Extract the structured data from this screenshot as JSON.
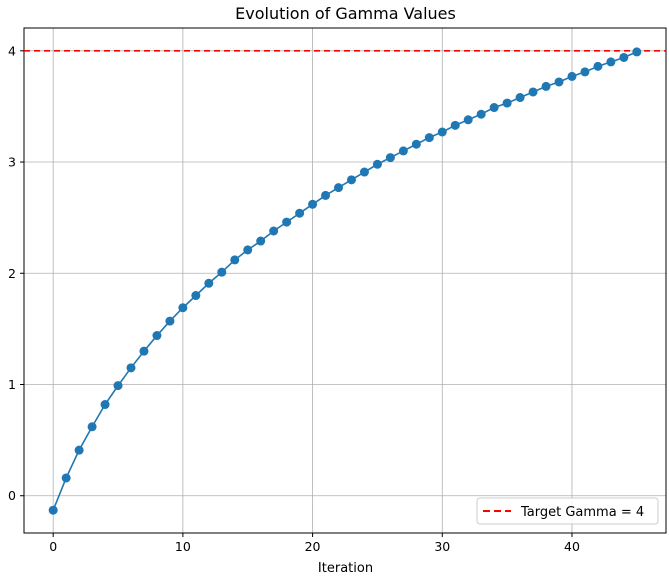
{
  "chart_data": {
    "type": "line",
    "title": "Evolution of Gamma Values",
    "xlabel": "Iteration",
    "ylabel": "",
    "xlim": [
      -2.25,
      47.25
    ],
    "ylim": [
      -0.335,
      4.205
    ],
    "xticks": [
      0,
      10,
      20,
      30,
      40
    ],
    "yticks": [
      0,
      1,
      2,
      3,
      4
    ],
    "grid": true,
    "legend_position": "lower-right",
    "colors": {
      "series": "#1f77b4",
      "target": "#ff0000",
      "grid": "#b0b0b0"
    },
    "series": [
      {
        "name": "",
        "marker": "circle",
        "x": [
          0,
          1,
          2,
          3,
          4,
          5,
          6,
          7,
          8,
          9,
          10,
          11,
          12,
          13,
          14,
          15,
          16,
          17,
          18,
          19,
          20,
          21,
          22,
          23,
          24,
          25,
          26,
          27,
          28,
          29,
          30,
          31,
          32,
          33,
          34,
          35,
          36,
          37,
          38,
          39,
          40,
          41,
          42,
          43,
          44,
          45
        ],
        "y": [
          -0.13,
          0.16,
          0.41,
          0.62,
          0.82,
          0.99,
          1.15,
          1.3,
          1.44,
          1.57,
          1.69,
          1.8,
          1.91,
          2.01,
          2.12,
          2.21,
          2.29,
          2.38,
          2.46,
          2.54,
          2.62,
          2.7,
          2.77,
          2.84,
          2.91,
          2.98,
          3.04,
          3.1,
          3.16,
          3.22,
          3.27,
          3.33,
          3.38,
          3.43,
          3.49,
          3.53,
          3.58,
          3.63,
          3.68,
          3.72,
          3.77,
          3.81,
          3.86,
          3.9,
          3.94,
          3.99
        ]
      }
    ],
    "reference_lines": [
      {
        "name": "Target Gamma = 4",
        "y": 4,
        "style": "dashed"
      }
    ]
  }
}
